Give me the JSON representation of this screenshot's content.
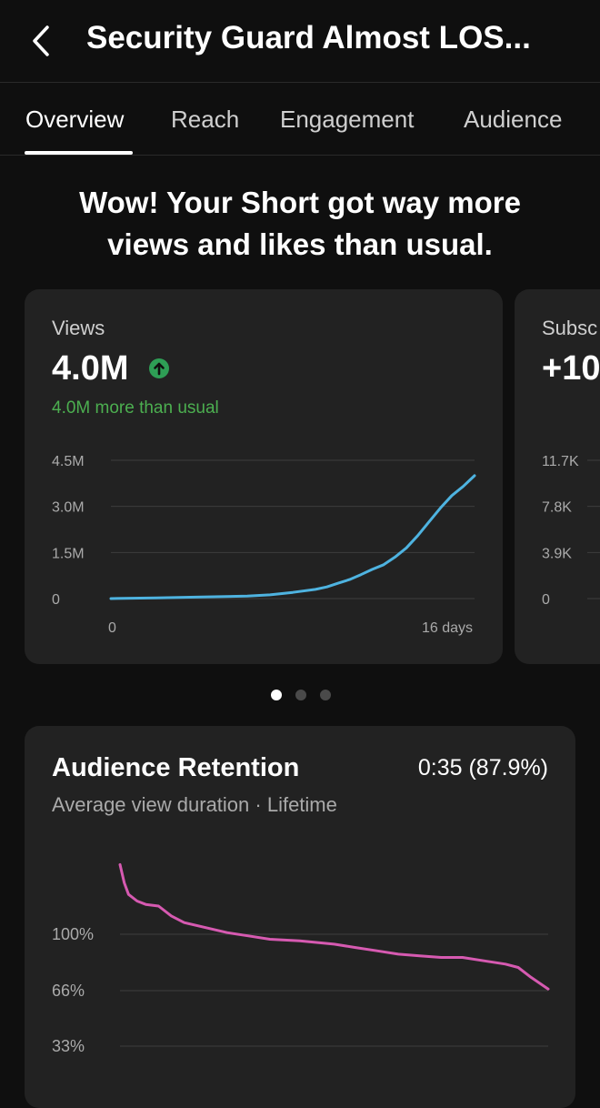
{
  "header": {
    "title": "Security Guard Almost LOS..."
  },
  "tabs": [
    "Overview",
    "Reach",
    "Engagement",
    "Audience"
  ],
  "headline": {
    "line1": "Wow! Your Short got way more",
    "line2": "views and likes than usual."
  },
  "views_card": {
    "label": "Views",
    "value": "4.0M",
    "sub": "4.0M more than usual",
    "accent": "#4eb3e0",
    "chart_data": {
      "type": "line",
      "x_tick_labels": [
        "0",
        "16 days"
      ],
      "y_tick_labels": [
        "4.5M",
        "3.0M",
        "1.5M",
        "0"
      ],
      "ylim": [
        0,
        4.5
      ],
      "xlim": [
        0,
        16
      ],
      "series": [
        {
          "x": [
            0,
            2,
            4,
            6,
            7,
            8,
            9,
            9.5,
            10,
            10.5,
            11,
            11.5,
            12,
            12.5,
            13,
            13.5,
            14,
            14.5,
            15,
            15.5,
            16
          ],
          "y": [
            0,
            0.02,
            0.05,
            0.08,
            0.12,
            0.2,
            0.3,
            0.38,
            0.5,
            0.62,
            0.78,
            0.95,
            1.1,
            1.35,
            1.65,
            2.05,
            2.5,
            2.95,
            3.35,
            3.65,
            4.0
          ]
        }
      ]
    }
  },
  "subs_card": {
    "label": "Subsc",
    "value": "+10",
    "chart_data": {
      "type": "line",
      "y_tick_labels": [
        "11.7K",
        "7.8K",
        "3.9K",
        "0"
      ]
    }
  },
  "pager": {
    "count": 3,
    "active": 0
  },
  "retention_card": {
    "title": "Audience Retention",
    "value": "0:35 (87.9%)",
    "subtitle": "Average view duration · Lifetime",
    "accent": "#d65ab1",
    "chart_data": {
      "type": "line",
      "y_tick_labels": [
        "100%",
        "66%",
        "33%"
      ],
      "series": [
        {
          "x": [
            0,
            0.01,
            0.02,
            0.04,
            0.06,
            0.09,
            0.12,
            0.15,
            0.2,
            0.25,
            0.3,
            0.35,
            0.42,
            0.5,
            0.55,
            0.6,
            0.65,
            0.7,
            0.75,
            0.8,
            0.85,
            0.9,
            0.93,
            0.96,
            1.0
          ],
          "y": [
            142,
            131,
            124,
            120,
            118,
            117,
            111,
            107,
            104,
            101,
            99,
            97,
            96,
            94,
            92,
            90,
            88,
            87,
            86,
            86,
            84,
            82,
            80,
            74,
            67
          ]
        }
      ]
    }
  }
}
